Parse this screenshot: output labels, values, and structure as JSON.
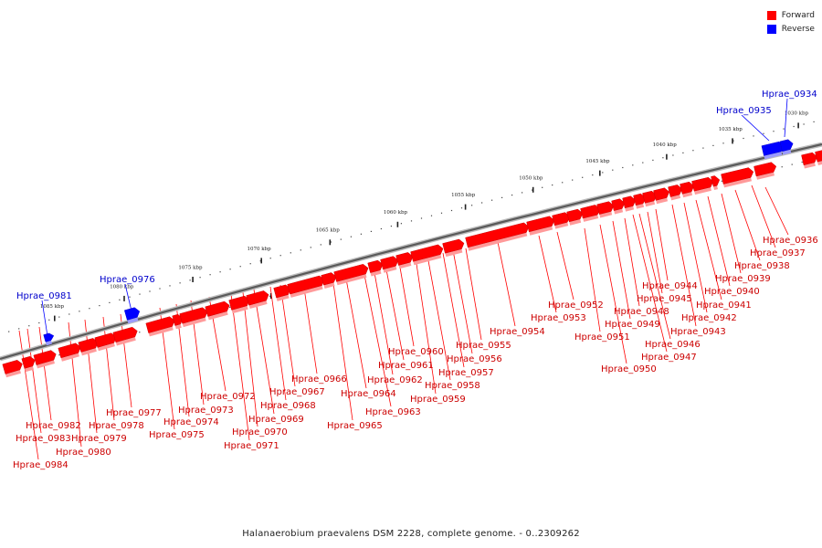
{
  "legend": {
    "forward_label": "Forward",
    "forward_color": "#ff0000",
    "reverse_label": "Reverse",
    "reverse_color": "#0000ff"
  },
  "caption": "Halanaerobium praevalens DSM 2228, complete genome. - 0..2309262",
  "axis": {
    "ticks": [
      "1085 kbp",
      "1080 kbp",
      "1075 kbp",
      "1070 kbp",
      "1065 kbp",
      "1060 kbp",
      "1055 kbp",
      "1050 kbp",
      "1045 kbp",
      "1040 kbp",
      "1035 kbp",
      "1030 kbp"
    ]
  },
  "genes": {
    "forward": [
      "Hprae_0936",
      "Hprae_0937",
      "Hprae_0938",
      "Hprae_0939",
      "Hprae_0940",
      "Hprae_0941",
      "Hprae_0942",
      "Hprae_0943",
      "Hprae_0944",
      "Hprae_0945",
      "Hprae_0946",
      "Hprae_0947",
      "Hprae_0948",
      "Hprae_0949",
      "Hprae_0950",
      "Hprae_0951",
      "Hprae_0952",
      "Hprae_0953",
      "Hprae_0954",
      "Hprae_0955",
      "Hprae_0956",
      "Hprae_0957",
      "Hprae_0958",
      "Hprae_0959",
      "Hprae_0960",
      "Hprae_0961",
      "Hprae_0962",
      "Hprae_0963",
      "Hprae_0964",
      "Hprae_0965",
      "Hprae_0966",
      "Hprae_0967",
      "Hprae_0968",
      "Hprae_0969",
      "Hprae_0970",
      "Hprae_0971",
      "Hprae_0972",
      "Hprae_0973",
      "Hprae_0974",
      "Hprae_0975",
      "Hprae_0977",
      "Hprae_0978",
      "Hprae_0979",
      "Hprae_0980",
      "Hprae_0982",
      "Hprae_0983",
      "Hprae_0984"
    ],
    "reverse": [
      "Hprae_0934",
      "Hprae_0935",
      "Hprae_0976",
      "Hprae_0981"
    ]
  }
}
